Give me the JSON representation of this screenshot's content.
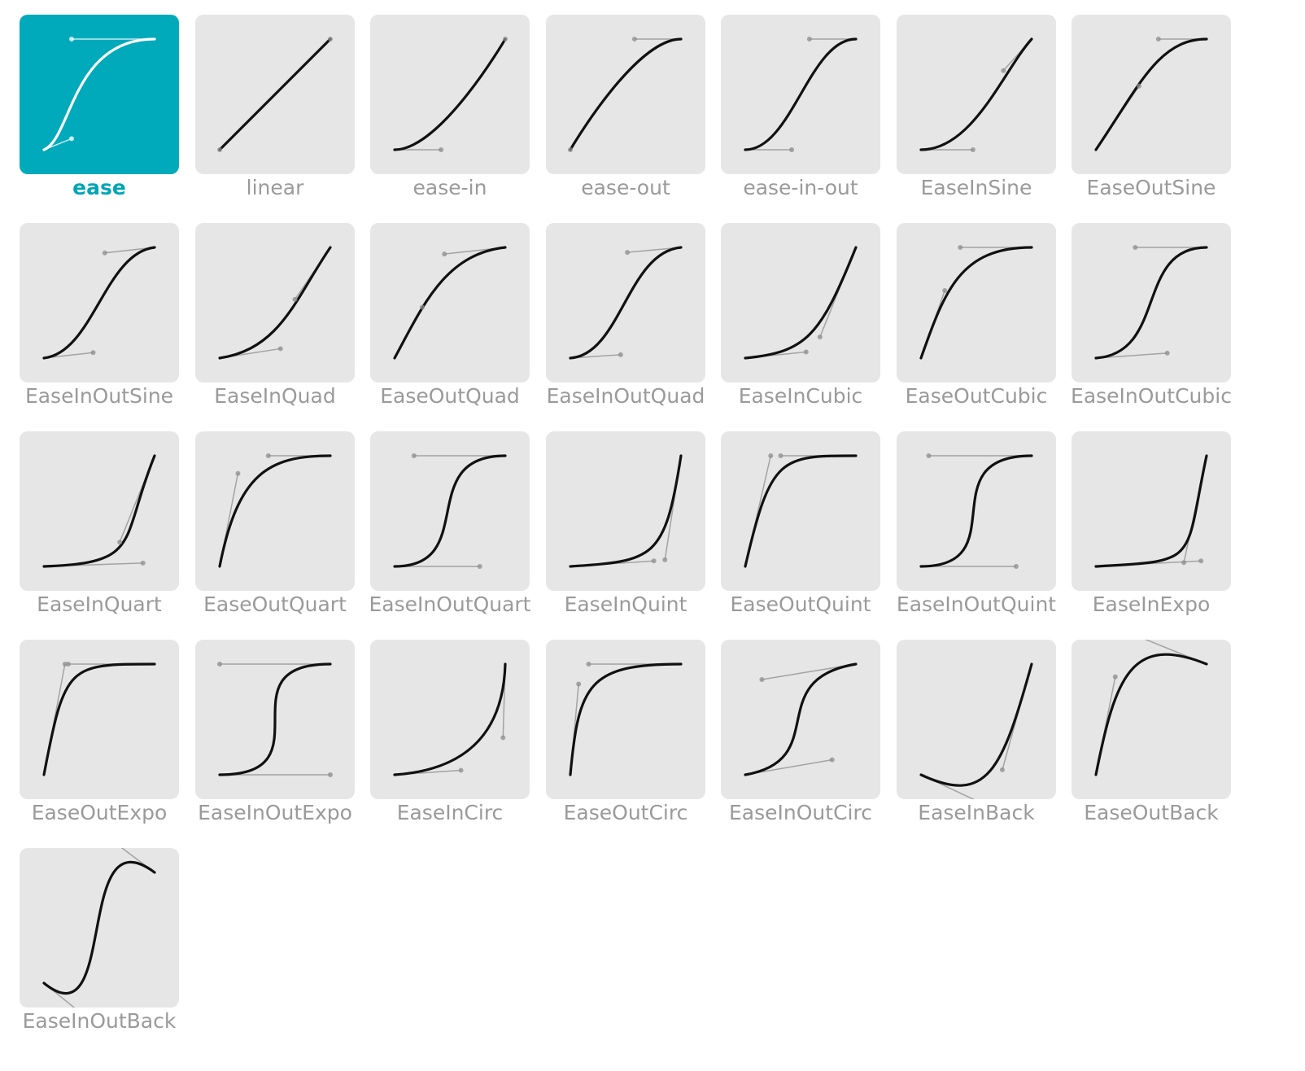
{
  "selected": "ease",
  "colors": {
    "tile_bg": "#e6e6e6",
    "selected_bg": "#00aabb",
    "curve": "#111111",
    "selected_curve": "#ffffff",
    "handle": "#9a9a9a",
    "label": "#9a9a9a",
    "selected_label": "#00a5b5"
  },
  "curves": [
    {
      "name": "ease",
      "bezier": [
        0.25,
        0.1,
        0.25,
        1.0
      ]
    },
    {
      "name": "linear",
      "bezier": [
        0.0,
        0.0,
        1.0,
        1.0
      ]
    },
    {
      "name": "ease-in",
      "bezier": [
        0.42,
        0.0,
        1.0,
        1.0
      ]
    },
    {
      "name": "ease-out",
      "bezier": [
        0.0,
        0.0,
        0.58,
        1.0
      ]
    },
    {
      "name": "ease-in-out",
      "bezier": [
        0.42,
        0.0,
        0.58,
        1.0
      ]
    },
    {
      "name": "EaseInSine",
      "bezier": [
        0.47,
        0.0,
        0.745,
        0.715
      ]
    },
    {
      "name": "EaseOutSine",
      "bezier": [
        0.39,
        0.575,
        0.565,
        1.0
      ]
    },
    {
      "name": "EaseInOutSine",
      "bezier": [
        0.445,
        0.05,
        0.55,
        0.95
      ]
    },
    {
      "name": "EaseInQuad",
      "bezier": [
        0.55,
        0.085,
        0.68,
        0.53
      ]
    },
    {
      "name": "EaseOutQuad",
      "bezier": [
        0.25,
        0.46,
        0.45,
        0.94
      ]
    },
    {
      "name": "EaseInOutQuad",
      "bezier": [
        0.455,
        0.03,
        0.515,
        0.955
      ]
    },
    {
      "name": "EaseInCubic",
      "bezier": [
        0.55,
        0.055,
        0.675,
        0.19
      ]
    },
    {
      "name": "EaseOutCubic",
      "bezier": [
        0.215,
        0.61,
        0.355,
        1.0
      ]
    },
    {
      "name": "EaseInOutCubic",
      "bezier": [
        0.645,
        0.045,
        0.355,
        1.0
      ]
    },
    {
      "name": "EaseInQuart",
      "bezier": [
        0.895,
        0.03,
        0.685,
        0.22
      ]
    },
    {
      "name": "EaseOutQuart",
      "bezier": [
        0.165,
        0.84,
        0.44,
        1.0
      ]
    },
    {
      "name": "EaseInOutQuart",
      "bezier": [
        0.77,
        0.0,
        0.175,
        1.0
      ]
    },
    {
      "name": "EaseInQuint",
      "bezier": [
        0.755,
        0.05,
        0.855,
        0.06
      ]
    },
    {
      "name": "EaseOutQuint",
      "bezier": [
        0.23,
        1.0,
        0.32,
        1.0
      ]
    },
    {
      "name": "EaseInOutQuint",
      "bezier": [
        0.86,
        0.0,
        0.07,
        1.0
      ]
    },
    {
      "name": "EaseInExpo",
      "bezier": [
        0.95,
        0.05,
        0.795,
        0.035
      ]
    },
    {
      "name": "EaseOutExpo",
      "bezier": [
        0.19,
        1.0,
        0.22,
        1.0
      ]
    },
    {
      "name": "EaseInOutExpo",
      "bezier": [
        1.0,
        0.0,
        0.0,
        1.0
      ]
    },
    {
      "name": "EaseInCirc",
      "bezier": [
        0.6,
        0.04,
        0.98,
        0.335
      ]
    },
    {
      "name": "EaseOutCirc",
      "bezier": [
        0.075,
        0.82,
        0.165,
        1.0
      ]
    },
    {
      "name": "EaseInOutCirc",
      "bezier": [
        0.785,
        0.135,
        0.15,
        0.86
      ]
    },
    {
      "name": "EaseInBack",
      "bezier": [
        0.6,
        -0.28,
        0.735,
        0.045
      ]
    },
    {
      "name": "EaseOutBack",
      "bezier": [
        0.175,
        0.885,
        0.32,
        1.275
      ]
    },
    {
      "name": "EaseInOutBack",
      "bezier": [
        0.68,
        -0.55,
        0.265,
        1.55
      ]
    }
  ]
}
